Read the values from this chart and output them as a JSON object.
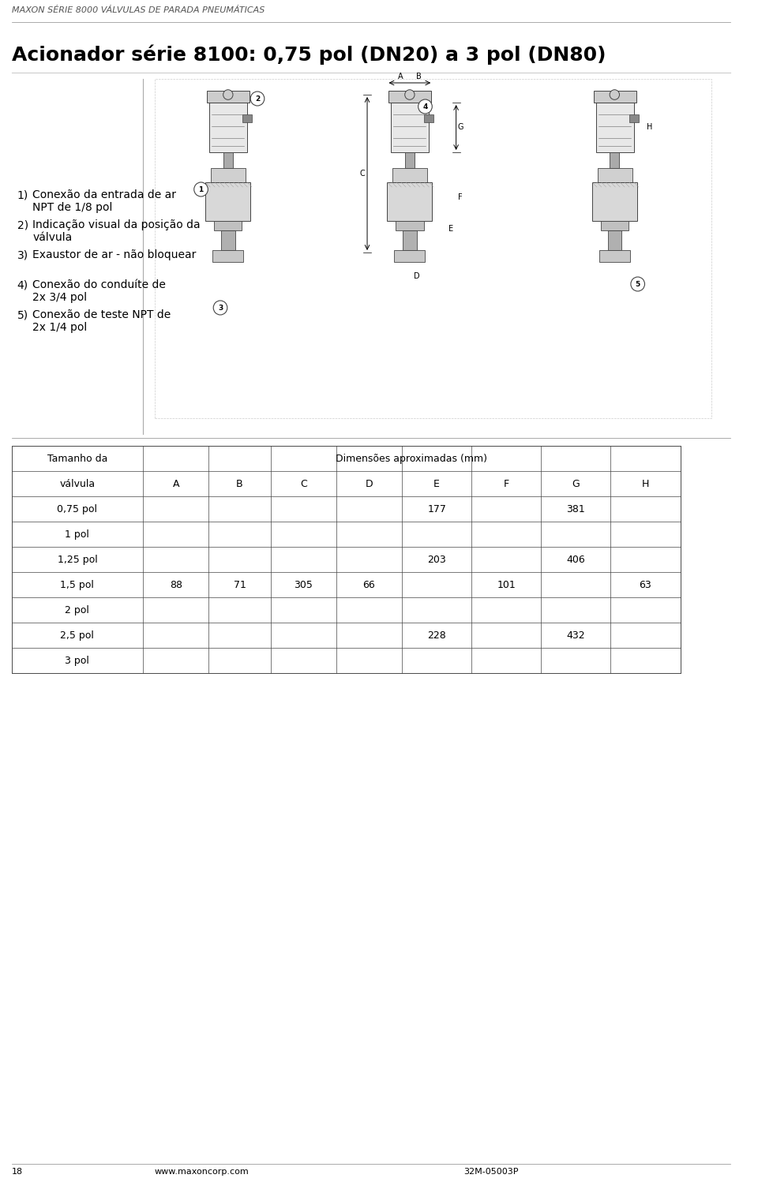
{
  "header_text": "MAXON SÉRIE 8000 VÁLVULAS DE PARADA PNEUMÁTICAS",
  "title": "Acionador série 8100: 0,75 pol (DN20) a 3 pol (DN80)",
  "bullet_items": [
    "Conexão da entrada de ar\nNPT de 1/8 pol",
    "Indicação visual da posição da\nválvula",
    "Exaustor de ar - não bloquear",
    "Conexão do conduíte de\n2x 3/4 pol",
    "Conexão de teste NPT de\n2x 1/4 pol"
  ],
  "table_header_row1": [
    "Tamanho da",
    "Dimensões aproximadas (mm)"
  ],
  "table_header_row2": [
    "válvula",
    "A",
    "B",
    "C",
    "D",
    "E",
    "F",
    "G",
    "H"
  ],
  "table_rows": [
    [
      "0,75 pol",
      "",
      "",
      "",
      "",
      "177",
      "",
      "381",
      ""
    ],
    [
      "1 pol",
      "",
      "",
      "",
      "",
      "",
      "",
      "",
      ""
    ],
    [
      "1,25 pol",
      "",
      "",
      "",
      "",
      "203",
      "",
      "406",
      ""
    ],
    [
      "1,5 pol",
      "88",
      "71",
      "305",
      "66",
      "",
      "101",
      "",
      "63"
    ],
    [
      "2 pol",
      "",
      "",
      "",
      "",
      "",
      "",
      "",
      ""
    ],
    [
      "2,5 pol",
      "",
      "",
      "",
      "",
      "228",
      "",
      "432",
      ""
    ],
    [
      "3 pol",
      "",
      "",
      "",
      "",
      "",
      "",
      "",
      ""
    ]
  ],
  "footer_page": "18",
  "footer_url": "www.maxoncorp.com",
  "footer_code": "32M-05003P",
  "bg_color": "#ffffff",
  "text_color": "#000000",
  "header_color": "#555555",
  "line_color": "#000000",
  "title_fontsize": 18,
  "header_fontsize": 8,
  "body_fontsize": 10,
  "table_fontsize": 9
}
